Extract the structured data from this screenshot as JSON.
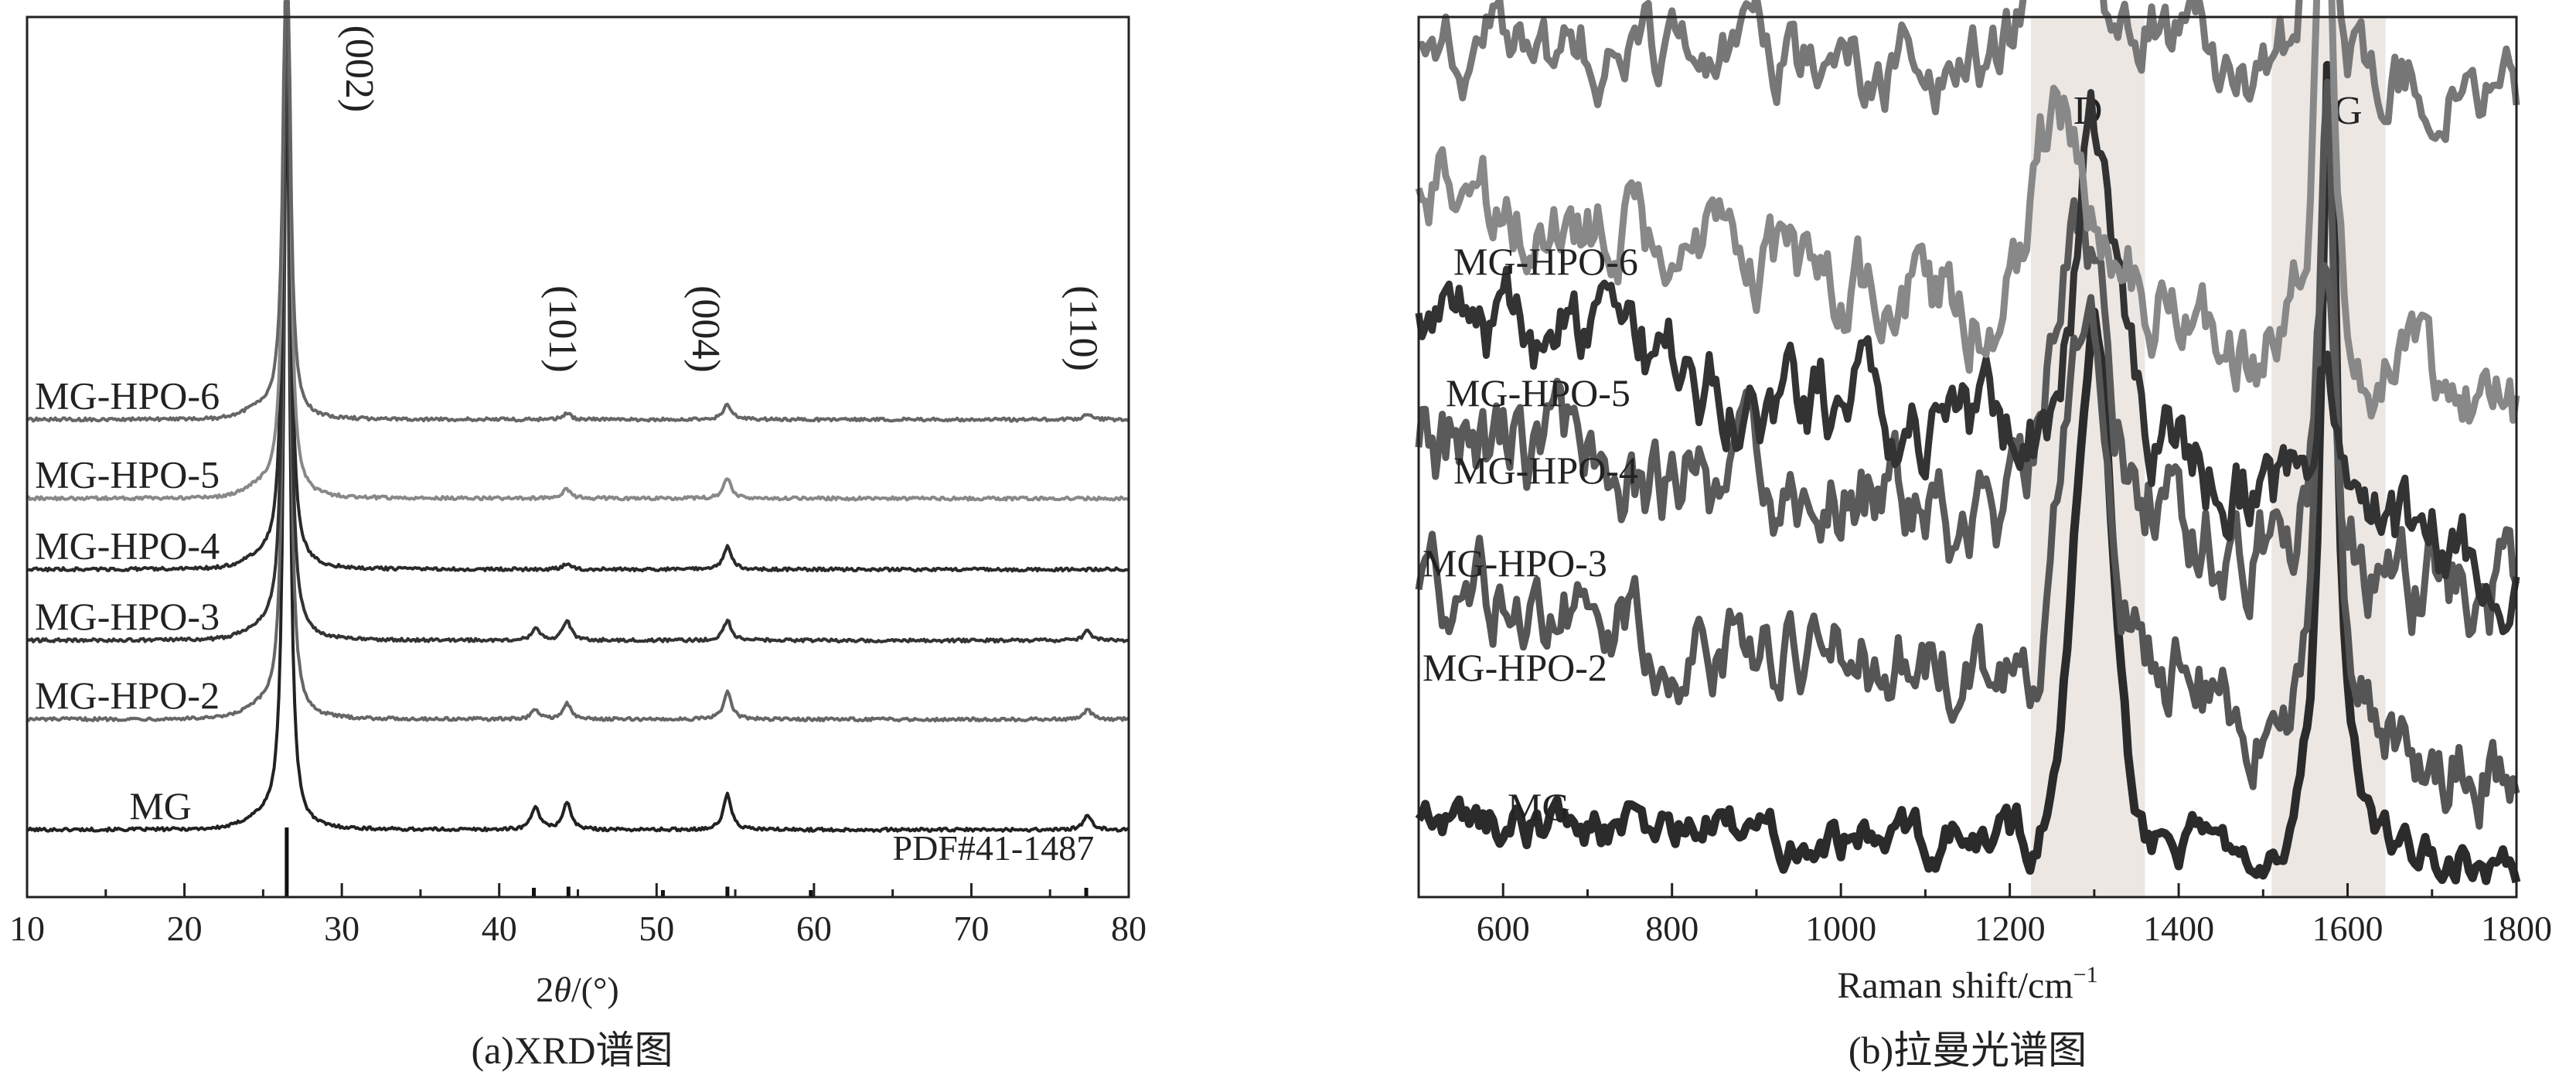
{
  "chart_data": [
    {
      "type": "line",
      "caption": "(a)XRD谱图",
      "xlabel_prefix": "2",
      "xlabel_symbol": "θ",
      "xlabel_suffix": "/(°)",
      "ylabel": "",
      "xlim": [
        10,
        80
      ],
      "x_ticks": [
        10,
        20,
        30,
        40,
        50,
        60,
        70,
        80
      ],
      "stacked_offset": true,
      "series": [
        {
          "name": "MG",
          "color": "#222222",
          "baseline": 0.0,
          "peaks": [
            {
              "x": 26.5,
              "h": 1.0,
              "w": 0.22
            },
            {
              "x": 42.3,
              "h": 0.03,
              "w": 0.3
            },
            {
              "x": 44.3,
              "h": 0.035,
              "w": 0.3
            },
            {
              "x": 54.5,
              "h": 0.045,
              "w": 0.3
            },
            {
              "x": 77.4,
              "h": 0.018,
              "w": 0.3
            }
          ]
        },
        {
          "name": "MG-HPO-2",
          "color": "#666666",
          "baseline": 0.14,
          "peaks": [
            {
              "x": 26.5,
              "h": 1.0,
              "w": 0.22
            },
            {
              "x": 42.3,
              "h": 0.012,
              "w": 0.3
            },
            {
              "x": 44.3,
              "h": 0.02,
              "w": 0.3
            },
            {
              "x": 54.5,
              "h": 0.035,
              "w": 0.3
            },
            {
              "x": 77.4,
              "h": 0.012,
              "w": 0.3
            }
          ]
        },
        {
          "name": "MG-HPO-3",
          "color": "#333333",
          "baseline": 0.24,
          "peaks": [
            {
              "x": 26.5,
              "h": 1.0,
              "w": 0.22
            },
            {
              "x": 42.3,
              "h": 0.015,
              "w": 0.3
            },
            {
              "x": 44.3,
              "h": 0.025,
              "w": 0.3
            },
            {
              "x": 54.5,
              "h": 0.025,
              "w": 0.3
            },
            {
              "x": 77.4,
              "h": 0.012,
              "w": 0.3
            }
          ]
        },
        {
          "name": "MG-HPO-4",
          "color": "#2a2a2a",
          "baseline": 0.33,
          "peaks": [
            {
              "x": 26.5,
              "h": 1.0,
              "w": 0.22
            },
            {
              "x": 44.3,
              "h": 0.008,
              "w": 0.3
            },
            {
              "x": 54.5,
              "h": 0.03,
              "w": 0.3
            }
          ]
        },
        {
          "name": "MG-HPO-5",
          "color": "#888888",
          "baseline": 0.42,
          "peaks": [
            {
              "x": 26.5,
              "h": 0.9,
              "w": 0.22
            },
            {
              "x": 44.3,
              "h": 0.012,
              "w": 0.3
            },
            {
              "x": 54.5,
              "h": 0.025,
              "w": 0.3
            }
          ]
        },
        {
          "name": "MG-HPO-6",
          "color": "#666666",
          "baseline": 0.52,
          "peaks": [
            {
              "x": 26.5,
              "h": 0.78,
              "w": 0.22
            },
            {
              "x": 44.3,
              "h": 0.008,
              "w": 0.3
            },
            {
              "x": 54.5,
              "h": 0.02,
              "w": 0.3
            },
            {
              "x": 77.4,
              "h": 0.008,
              "w": 0.3
            }
          ]
        }
      ],
      "annotations": [
        {
          "text": "(002)",
          "x": 30.3,
          "level": 1.02
        },
        {
          "text": "(101)",
          "x": 43.2,
          "level": 0.69
        },
        {
          "text": "(004)",
          "x": 52.3,
          "level": 0.69
        },
        {
          "text": "(110)",
          "x": 76.3,
          "level": 0.69
        }
      ],
      "reference": {
        "name": "PDF#41-1487",
        "positions": [
          26.5,
          42.2,
          44.4,
          50.4,
          54.5,
          59.8,
          77.3
        ],
        "heights": [
          1.0,
          0.4,
          0.45,
          0.3,
          0.45,
          0.3,
          0.4
        ]
      }
    },
    {
      "type": "line",
      "caption": "(b)拉曼光谱图",
      "xlabel_main": "Raman shift/cm",
      "xlabel_sup": "−1",
      "ylabel": "",
      "xlim": [
        500,
        1800
      ],
      "x_ticks": [
        600,
        800,
        1000,
        1200,
        1400,
        1600,
        1800
      ],
      "stacked_offset": true,
      "bands": [
        {
          "label": "D",
          "from": 1225,
          "to": 1360,
          "color": "#ece7e3"
        },
        {
          "label": "G",
          "from": 1510,
          "to": 1645,
          "color": "#ece7e3"
        }
      ],
      "series": [
        {
          "name": "MG",
          "color": "#2b2b2b",
          "start": 0.05,
          "end": 0.0,
          "d_x": 1300,
          "d_h": 0.58,
          "d_w": 32,
          "g_x": 1578,
          "g_h": 0.93,
          "g_w": 11,
          "noise": 0.018
        },
        {
          "name": "MG-HPO-2",
          "color": "#555555",
          "start": 0.31,
          "end": 0.1,
          "d_x": 1290,
          "d_h": 0.38,
          "d_w": 38,
          "g_x": 1575,
          "g_h": 0.75,
          "g_w": 11,
          "noise": 0.035
        },
        {
          "name": "MG-HPO-3",
          "color": "#5a5a5a",
          "start": 0.47,
          "end": 0.3,
          "d_x": 1280,
          "d_h": 0.3,
          "d_w": 40,
          "g_x": 1575,
          "g_h": 0.4,
          "g_w": 12,
          "noise": 0.04
        },
        {
          "name": "MG-HPO-4",
          "color": "#333333",
          "start": 0.62,
          "end": 0.34,
          "d_x": 1300,
          "d_h": 0.33,
          "d_w": 32,
          "g_x": 1575,
          "g_h": 0.22,
          "g_w": 14,
          "noise": 0.035
        },
        {
          "name": "MG-HPO-5",
          "color": "#888888",
          "start": 0.76,
          "end": 0.5,
          "d_x": 1260,
          "d_h": 0.22,
          "d_w": 40,
          "g_x": 1572,
          "g_h": 0.6,
          "g_w": 12,
          "noise": 0.035
        },
        {
          "name": "MG-HPO-6",
          "color": "#777777",
          "start": 0.92,
          "end": 0.86,
          "d_x": 1258,
          "d_h": 0.22,
          "d_w": 40,
          "g_x": 1568,
          "g_h": 0.5,
          "g_w": 13,
          "noise": 0.03
        }
      ]
    }
  ]
}
